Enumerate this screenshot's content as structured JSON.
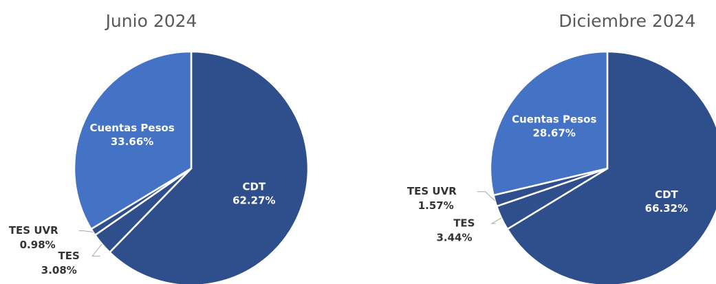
{
  "chart_data": [
    {
      "type": "pie",
      "title": "Junio 2024",
      "categories": [
        "CDT",
        "TES",
        "TES UVR",
        "Cuentas Pesos"
      ],
      "values": [
        62.27,
        3.08,
        0.98,
        33.66
      ],
      "value_labels": [
        "62.27%",
        "3.08%",
        "0.98%",
        "33.66%"
      ],
      "colors": [
        "#2f4f8c",
        "#2f4f8c",
        "#2f4f8c",
        "#4472c4"
      ]
    },
    {
      "type": "pie",
      "title": "Diciembre 2024",
      "categories": [
        "CDT",
        "TES",
        "TES UVR",
        "Cuentas Pesos"
      ],
      "values": [
        66.32,
        3.44,
        1.57,
        28.67
      ],
      "value_labels": [
        "66.32%",
        "3.44%",
        "1.57%",
        "28.67%"
      ],
      "colors": [
        "#2f4f8c",
        "#2f4f8c",
        "#2f4f8c",
        "#4472c4"
      ]
    }
  ]
}
